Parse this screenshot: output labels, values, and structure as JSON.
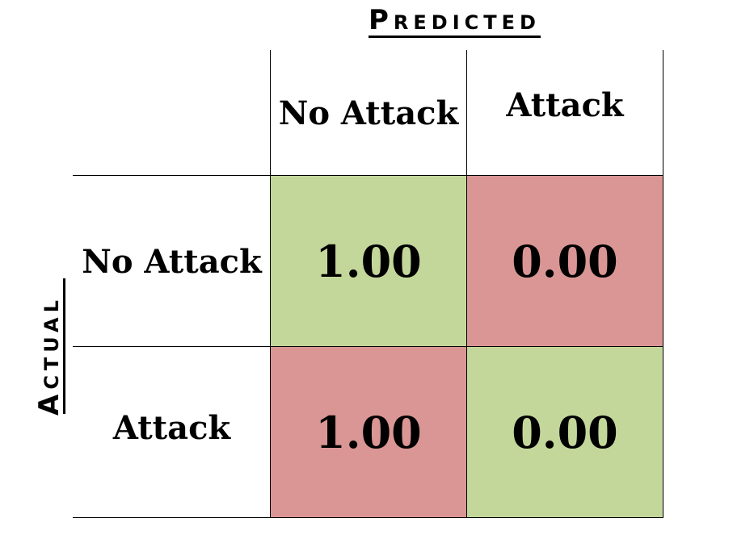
{
  "chart_data": {
    "type": "heatmap",
    "title": "",
    "xlabel": "Predicted",
    "ylabel": "Actual",
    "columns": [
      "No Attack",
      "Attack"
    ],
    "rows": [
      "No Attack",
      "Attack"
    ],
    "values": [
      [
        "1.00",
        "0.00"
      ],
      [
        "1.00",
        "0.00"
      ]
    ],
    "colors": {
      "correct": "#c4d79b",
      "incorrect": "#da9694"
    },
    "cell_colors": [
      [
        "correct",
        "incorrect"
      ],
      [
        "incorrect",
        "correct"
      ]
    ]
  }
}
